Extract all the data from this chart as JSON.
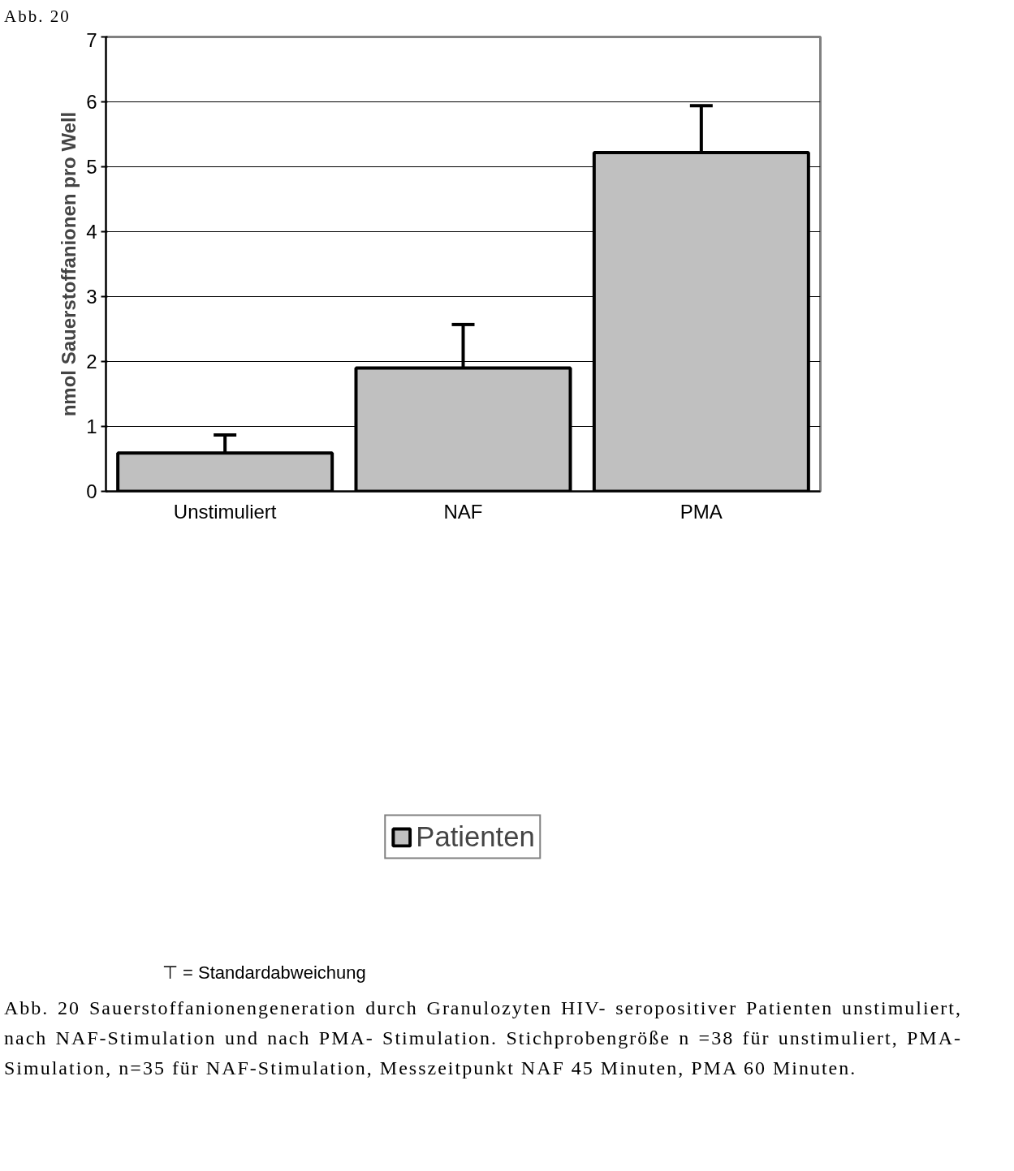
{
  "chart_data": {
    "type": "bar",
    "title": "Abb. 20",
    "ylabel": "nmol Sauerstoffanionen pro Well",
    "categories": [
      "Unstimuliert",
      "NAF",
      "PMA"
    ],
    "series": [
      {
        "name": "Patienten",
        "color": "#c0c0c0",
        "values": [
          0.59,
          1.9,
          5.22
        ],
        "errors": [
          [
            0.59,
            0.87
          ],
          [
            1.9,
            2.57
          ],
          [
            5.22,
            5.94
          ]
        ]
      }
    ],
    "ylim": [
      0,
      7
    ],
    "yticks": [
      0,
      1,
      2,
      3,
      4,
      5,
      6,
      7
    ],
    "grid": "y",
    "legend": "bottom",
    "annotations": [
      "⊤ = Standardabweichung",
      "Abb. 20 Sauerstoffanionengeneration durch Granulozyten HIV- seropositiver Patienten unstimuliert, nach NAF-Stimulation und nach PMA- Stimulation. Stichprobengröße n =38 für unstimuliert, PMA- Simulation, n=35 für NAF-Stimulation, Messzeitpunkt NAF 45 Minuten, PMA 60 Minuten."
    ]
  }
}
